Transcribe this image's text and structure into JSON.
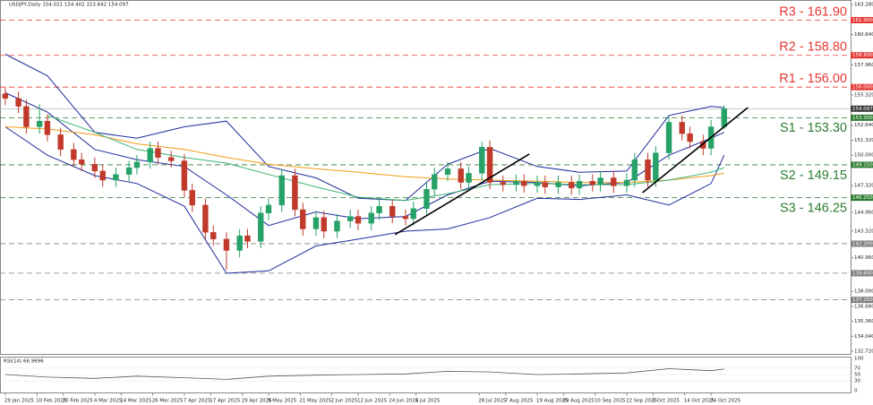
{
  "chart_data": [
    {
      "type": "candlestick",
      "title": "USDJPY,Daily 154.021 154.402 153.642 154.097",
      "xlim": [
        "2025-01-27",
        "2025-12-16"
      ],
      "ylim": [
        132.72,
        163.28
      ],
      "yticks": [
        {
          "value": 163.28,
          "label": "163.280"
        },
        {
          "value": 160.64,
          "label": "160.640"
        },
        {
          "value": 157.96,
          "label": "157.960"
        },
        {
          "value": 155.32,
          "label": "155.320"
        },
        {
          "value": 152.64,
          "label": "152.640"
        },
        {
          "value": 151.32,
          "label": "151.320"
        },
        {
          "value": 150,
          "label": "150.000"
        },
        {
          "value": 147.32,
          "label": "147.320"
        },
        {
          "value": 144.96,
          "label": "144.960"
        },
        {
          "value": 143.32,
          "label": "143.320"
        },
        {
          "value": 140.96,
          "label": "140.960"
        },
        {
          "value": 138,
          "label": "138.000"
        },
        {
          "value": 136.68,
          "label": "136.680"
        },
        {
          "value": 135.36,
          "label": "135.360"
        },
        {
          "value": 134.04,
          "label": "134.040"
        },
        {
          "value": 132.72,
          "label": "132.720"
        }
      ],
      "up_color": "#26a269",
      "down_color": "#c0392b",
      "x": [
        "2025-01-29",
        "2025-02-03",
        "2025-02-06",
        "2025-02-11",
        "2025-02-14",
        "2025-02-19",
        "2025-02-24",
        "2025-02-27",
        "2025-03-04",
        "2025-03-07",
        "2025-03-12",
        "2025-03-17",
        "2025-03-20",
        "2025-03-25",
        "2025-03-28",
        "2025-04-02",
        "2025-04-07",
        "2025-04-10",
        "2025-04-15",
        "2025-04-18",
        "2025-04-23",
        "2025-04-28",
        "2025-05-01",
        "2025-05-06",
        "2025-05-09",
        "2025-05-14",
        "2025-05-19",
        "2025-05-22",
        "2025-05-27",
        "2025-05-30",
        "2025-06-04",
        "2025-06-09",
        "2025-06-12",
        "2025-06-17",
        "2025-06-20",
        "2025-06-25",
        "2025-06-30",
        "2025-07-03",
        "2025-07-08",
        "2025-07-11",
        "2025-07-16",
        "2025-07-21",
        "2025-07-24",
        "2025-07-29",
        "2025-08-01",
        "2025-08-06",
        "2025-08-11",
        "2025-08-14",
        "2025-08-19",
        "2025-08-22",
        "2025-08-27",
        "2025-09-01",
        "2025-09-04",
        "2025-09-09",
        "2025-09-12",
        "2025-09-17",
        "2025-09-22",
        "2025-09-25",
        "2025-09-30",
        "2025-10-03",
        "2025-10-08",
        "2025-10-13",
        "2025-10-16",
        "2025-10-21",
        "2025-10-24",
        "2025-10-29"
      ],
      "open": [
        155.4,
        155.0,
        154.3,
        152.5,
        153.0,
        151.8,
        150.5,
        149.6,
        149.2,
        148.6,
        147.8,
        148.3,
        148.9,
        149.4,
        150.6,
        149.8,
        149.5,
        146.9,
        145.6,
        143.2,
        142.6,
        141.6,
        142.9,
        142.4,
        144.9,
        145.6,
        148.2,
        145.2,
        143.5,
        144.5,
        143.3,
        144.2,
        144.6,
        144.0,
        144.9,
        145.5,
        144.6,
        144.4,
        145.3,
        147.0,
        148.3,
        148.8,
        147.6,
        148.4,
        150.7,
        147.6,
        147.4,
        147.7,
        147.3,
        147.6,
        147.2,
        147.6,
        147.1,
        147.7,
        147.4,
        148.0,
        147.3,
        147.8,
        149.6,
        147.8,
        150.2,
        152.9,
        151.9,
        151.2,
        150.6,
        152.5
      ],
      "high": [
        156.0,
        155.6,
        154.9,
        154.5,
        153.6,
        152.4,
        151.1,
        150.2,
        149.8,
        149.2,
        148.9,
        149.5,
        150.0,
        151.2,
        151.2,
        150.4,
        150.1,
        147.5,
        146.2,
        143.8,
        143.2,
        143.5,
        143.5,
        145.5,
        146.2,
        148.8,
        148.8,
        145.8,
        145.1,
        145.1,
        144.8,
        145.2,
        145.2,
        145.5,
        146.1,
        146.1,
        145.2,
        145.9,
        147.6,
        148.9,
        149.4,
        149.4,
        149.0,
        151.2,
        151.3,
        148.2,
        148.3,
        148.3,
        148.2,
        148.2,
        148.2,
        148.2,
        148.3,
        148.3,
        148.6,
        148.6,
        148.4,
        150.2,
        150.2,
        150.8,
        153.5,
        153.5,
        152.5,
        151.8,
        153.1,
        154.4
      ],
      "low": [
        154.4,
        153.7,
        151.9,
        151.9,
        151.2,
        149.9,
        149.0,
        148.6,
        148.0,
        147.2,
        147.2,
        147.7,
        148.3,
        148.8,
        149.2,
        148.9,
        146.3,
        145.0,
        142.6,
        142.0,
        139.9,
        141.0,
        141.8,
        141.8,
        144.3,
        145.0,
        144.6,
        142.9,
        142.9,
        142.7,
        142.7,
        143.6,
        143.4,
        143.4,
        144.3,
        144.0,
        143.8,
        143.8,
        144.7,
        146.4,
        147.7,
        147.0,
        147.0,
        147.8,
        147.0,
        146.8,
        146.8,
        146.7,
        146.7,
        146.6,
        146.6,
        146.5,
        146.5,
        146.8,
        146.8,
        146.7,
        146.7,
        147.2,
        147.2,
        147.2,
        149.6,
        151.3,
        150.6,
        150.0,
        150.0,
        152.3
      ],
      "close": [
        155.0,
        154.3,
        152.5,
        153.0,
        151.8,
        150.5,
        149.6,
        149.2,
        148.6,
        147.8,
        148.3,
        148.9,
        149.4,
        150.6,
        149.8,
        149.5,
        146.9,
        145.6,
        143.2,
        142.6,
        141.6,
        142.9,
        142.4,
        144.9,
        145.6,
        148.2,
        145.2,
        143.5,
        144.5,
        143.3,
        144.2,
        144.6,
        144.0,
        144.9,
        145.5,
        144.6,
        144.4,
        145.3,
        147.0,
        148.3,
        148.8,
        147.6,
        148.4,
        150.7,
        147.6,
        147.4,
        147.7,
        147.3,
        147.6,
        147.2,
        147.6,
        147.1,
        147.7,
        147.4,
        148.0,
        147.3,
        147.8,
        149.6,
        147.8,
        150.2,
        152.9,
        151.9,
        151.2,
        150.6,
        152.5,
        154.1
      ],
      "lines": [
        {
          "color": "#1f2a9c",
          "x": [
            "2025-01-29",
            "2025-02-14",
            "2025-03-04",
            "2025-03-20",
            "2025-04-07",
            "2025-04-23",
            "2025-05-09",
            "2025-05-27",
            "2025-06-12",
            "2025-06-30",
            "2025-07-16",
            "2025-08-01",
            "2025-08-19",
            "2025-09-04",
            "2025-09-22",
            "2025-10-08",
            "2025-10-24",
            "2025-10-29"
          ],
          "values": [
            158.9,
            157.0,
            152.0,
            151.5,
            152.5,
            153.0,
            149.0,
            148.0,
            146.2,
            146.0,
            149.2,
            150.6,
            149.0,
            148.5,
            148.6,
            153.5,
            154.3,
            154.2
          ]
        },
        {
          "color": "#1f2a9c",
          "x": [
            "2025-01-29",
            "2025-02-14",
            "2025-03-04",
            "2025-03-20",
            "2025-04-07",
            "2025-04-23",
            "2025-05-09",
            "2025-05-27",
            "2025-06-12",
            "2025-06-30",
            "2025-07-16",
            "2025-08-01",
            "2025-08-19",
            "2025-09-04",
            "2025-09-22",
            "2025-10-08",
            "2025-10-24",
            "2025-10-29"
          ],
          "values": [
            155.5,
            153.8,
            150.5,
            149.6,
            149.0,
            146.5,
            143.8,
            145.0,
            144.4,
            144.6,
            146.5,
            147.7,
            147.6,
            147.3,
            147.6,
            150.0,
            151.5,
            152.0
          ]
        },
        {
          "color": "#1f2a9c",
          "x": [
            "2025-01-29",
            "2025-02-14",
            "2025-03-04",
            "2025-03-20",
            "2025-04-07",
            "2025-04-23",
            "2025-05-09",
            "2025-05-27",
            "2025-06-12",
            "2025-06-30",
            "2025-07-16",
            "2025-08-01",
            "2025-08-19",
            "2025-09-04",
            "2025-09-22",
            "2025-10-08",
            "2025-10-24",
            "2025-10-29"
          ],
          "values": [
            152.5,
            150.0,
            148.2,
            147.5,
            145.5,
            139.6,
            139.8,
            142.0,
            142.6,
            143.3,
            143.5,
            144.5,
            146.2,
            146.1,
            146.5,
            145.6,
            147.5,
            150.0
          ]
        },
        {
          "color": "#f39c12",
          "x": [
            "2025-01-29",
            "2025-02-14",
            "2025-03-04",
            "2025-03-20",
            "2025-04-07",
            "2025-04-23",
            "2025-05-09",
            "2025-05-27",
            "2025-06-12",
            "2025-06-30",
            "2025-07-16",
            "2025-08-01",
            "2025-08-19",
            "2025-09-04",
            "2025-09-22",
            "2025-10-08",
            "2025-10-24",
            "2025-10-29"
          ],
          "values": [
            152.5,
            152.3,
            151.8,
            151.0,
            150.5,
            149.8,
            149.2,
            148.8,
            148.5,
            148.1,
            147.9,
            147.8,
            147.7,
            147.6,
            147.6,
            147.8,
            148.2,
            148.4
          ]
        },
        {
          "color": "#3cb371",
          "x": [
            "2025-01-29",
            "2025-02-14",
            "2025-03-04",
            "2025-03-20",
            "2025-04-07",
            "2025-04-23",
            "2025-05-09",
            "2025-05-27",
            "2025-06-12",
            "2025-06-30",
            "2025-07-16",
            "2025-08-01",
            "2025-08-19",
            "2025-09-04",
            "2025-09-22",
            "2025-10-08",
            "2025-10-24",
            "2025-10-29"
          ],
          "values": [
            null,
            153.5,
            152.0,
            150.5,
            149.8,
            149.3,
            148.3,
            147.2,
            146.3,
            146.0,
            146.6,
            147.4,
            147.5,
            147.4,
            147.4,
            147.8,
            148.5,
            148.9
          ]
        }
      ],
      "trendlines": [
        {
          "x": [
            "2025-06-26",
            "2025-08-16"
          ],
          "values": [
            143.0,
            150.1
          ]
        },
        {
          "x": [
            "2025-09-28",
            "2025-11-07"
          ],
          "values": [
            146.7,
            154.2
          ]
        }
      ],
      "levels": [
        {
          "label": "R3 - 161.90",
          "value": 161.9,
          "axis_label": "161.900",
          "color": "#e53935"
        },
        {
          "label": "R2 - 158.80",
          "value": 158.8,
          "axis_label": "158.800",
          "color": "#e53935"
        },
        {
          "label": "R1 - 156.00",
          "value": 156.0,
          "axis_label": "156.000",
          "color": "#e53935"
        },
        {
          "label": "S1 - 153.30",
          "value": 153.3,
          "axis_label": "153.300",
          "color": "#2e7d32"
        },
        {
          "label": "S2 - 149.15",
          "value": 149.15,
          "axis_label": "149.150",
          "color": "#2e7d32"
        },
        {
          "label": "S3 - 146.25",
          "value": 146.25,
          "axis_label": "146.250",
          "color": "#2e7d32"
        },
        {
          "value": 142.2,
          "axis_label": "142.200",
          "color": "#7f7f7f"
        },
        {
          "value": 139.6,
          "axis_label": "139.600",
          "color": "#7f7f7f"
        },
        {
          "value": 137.25,
          "axis_label": "137.250",
          "color": "#7f7f7f"
        }
      ],
      "last_price": {
        "value": 154.097,
        "label": "154.097",
        "color": "#3a3a3a"
      }
    },
    {
      "type": "line",
      "title": "RSI(14) 66.9696",
      "xlim": [
        "2025-01-27",
        "2025-12-16"
      ],
      "ylim": [
        0,
        100
      ],
      "yticks": [
        0,
        30,
        50,
        70,
        100
      ],
      "color": "#555555",
      "x": [
        "2025-01-29",
        "2025-02-14",
        "2025-03-04",
        "2025-03-20",
        "2025-04-07",
        "2025-04-23",
        "2025-05-09",
        "2025-05-27",
        "2025-06-12",
        "2025-06-30",
        "2025-07-16",
        "2025-08-01",
        "2025-08-19",
        "2025-09-04",
        "2025-09-22",
        "2025-10-08",
        "2025-10-24",
        "2025-10-29"
      ],
      "values": [
        50,
        42,
        38,
        45,
        40,
        35,
        45,
        48,
        50,
        52,
        60,
        58,
        50,
        52,
        55,
        68,
        62,
        67
      ],
      "xticks": [
        {
          "value": "2025-01-29",
          "label": "29 Jan 2025"
        },
        {
          "value": "2025-02-10",
          "label": "10 Feb 2025"
        },
        {
          "value": "2025-02-20",
          "label": "20 Feb 2025"
        },
        {
          "value": "2025-03-04",
          "label": "4 Mar 2025"
        },
        {
          "value": "2025-03-14",
          "label": "14 Mar 2025"
        },
        {
          "value": "2025-03-26",
          "label": "26 Mar 2025"
        },
        {
          "value": "2025-04-07",
          "label": "7 Apr 2025"
        },
        {
          "value": "2025-04-17",
          "label": "17 Apr 2025"
        },
        {
          "value": "2025-04-29",
          "label": "29 Apr 2025"
        },
        {
          "value": "2025-05-09",
          "label": "9 May 2025"
        },
        {
          "value": "2025-05-21",
          "label": "21 May 2025"
        },
        {
          "value": "2025-06-02",
          "label": "2 Jun 2025"
        },
        {
          "value": "2025-06-12",
          "label": "12 Jun 2025"
        },
        {
          "value": "2025-06-24",
          "label": "24 Jun 2025"
        },
        {
          "value": "2025-07-04",
          "label": "4 Jul 2025"
        },
        {
          "value": "2025-07-28",
          "label": "28 Jul 2025"
        },
        {
          "value": "2025-08-07",
          "label": "7 Aug 2025"
        },
        {
          "value": "2025-08-19",
          "label": "19 Aug 2025"
        },
        {
          "value": "2025-08-29",
          "label": "29 Aug 2025"
        },
        {
          "value": "2025-09-10",
          "label": "10 Sep 2025"
        },
        {
          "value": "2025-09-22",
          "label": "22 Sep 2025"
        },
        {
          "value": "2025-10-02",
          "label": "2 Oct 2025"
        },
        {
          "value": "2025-10-14",
          "label": "14 Oct 2025"
        },
        {
          "value": "2025-10-24",
          "label": "24 Oct 2025"
        }
      ]
    }
  ]
}
